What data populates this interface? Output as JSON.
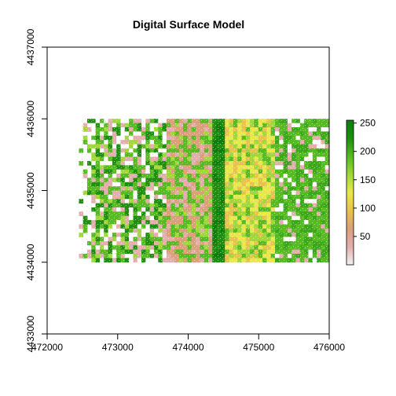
{
  "chart_data": {
    "type": "heatmap",
    "title": "Digital Surface Model",
    "xlabel": "",
    "ylabel": "",
    "xlim": [
      472000,
      476000
    ],
    "ylim": [
      4433000,
      4437000
    ],
    "x_ticks": [
      472000,
      473000,
      474000,
      475000,
      476000
    ],
    "y_ticks": [
      4433000,
      4434000,
      4435000,
      4436000,
      4437000
    ],
    "raster_extent": {
      "xmin": 472450,
      "xmax": 476000,
      "ymin": 4434000,
      "ymax": 4436000
    },
    "legend": {
      "position": "right",
      "range": [
        0,
        255
      ],
      "ticks": [
        50,
        100,
        150,
        200,
        250
      ],
      "colors": [
        "#f2f2f2",
        "#e3aeae",
        "#d9a07a",
        "#e8c24d",
        "#e8e84d",
        "#9fd83a",
        "#55bb22",
        "#1e8f10",
        "#0b7f0b"
      ]
    }
  }
}
